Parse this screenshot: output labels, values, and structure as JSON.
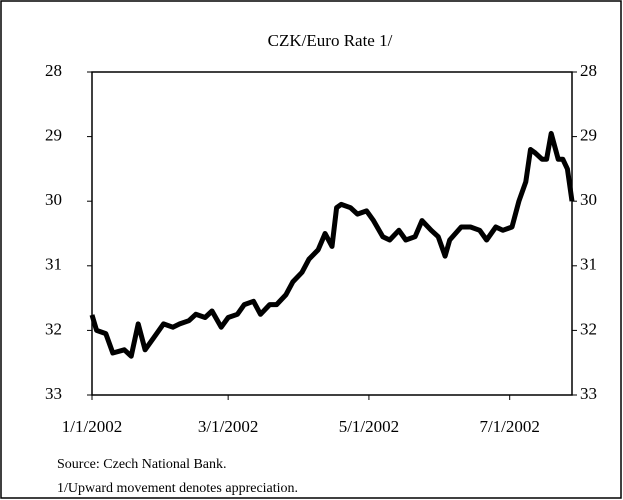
{
  "chart_data": {
    "type": "line",
    "title": "CZK/Euro Rate 1/",
    "source": "Source: Czech National Bank.",
    "note": "1/Upward movement denotes appreciation.",
    "xlim": [
      "2002-01-01",
      "2002-07-28"
    ],
    "xticks": [
      {
        "value": "2002-01-01",
        "label": "1/1/2002"
      },
      {
        "value": "2002-03-01",
        "label": "3/1/2002"
      },
      {
        "value": "2002-05-01",
        "label": "5/1/2002"
      },
      {
        "value": "2002-07-01",
        "label": "7/1/2002"
      }
    ],
    "ylim": [
      33,
      28
    ],
    "yticks": [
      28,
      29,
      30,
      31,
      32,
      33
    ],
    "y2lim": [
      33,
      28
    ],
    "y2ticks": [
      28,
      29,
      30,
      31,
      32,
      33
    ],
    "x": [
      "2002-01-01",
      "2002-01-03",
      "2002-01-07",
      "2002-01-10",
      "2002-01-15",
      "2002-01-18",
      "2002-01-21",
      "2002-01-24",
      "2002-01-28",
      "2002-02-01",
      "2002-02-05",
      "2002-02-08",
      "2002-02-12",
      "2002-02-15",
      "2002-02-19",
      "2002-02-22",
      "2002-02-26",
      "2002-03-01",
      "2002-03-05",
      "2002-03-08",
      "2002-03-12",
      "2002-03-15",
      "2002-03-19",
      "2002-03-22",
      "2002-03-26",
      "2002-03-29",
      "2002-04-02",
      "2002-04-05",
      "2002-04-09",
      "2002-04-12",
      "2002-04-15",
      "2002-04-17",
      "2002-04-19",
      "2002-04-23",
      "2002-04-26",
      "2002-04-30",
      "2002-05-03",
      "2002-05-07",
      "2002-05-10",
      "2002-05-14",
      "2002-05-17",
      "2002-05-21",
      "2002-05-24",
      "2002-05-28",
      "2002-05-31",
      "2002-06-03",
      "2002-06-05",
      "2002-06-10",
      "2002-06-14",
      "2002-06-18",
      "2002-06-21",
      "2002-06-25",
      "2002-06-28",
      "2002-07-02",
      "2002-07-05",
      "2002-07-08",
      "2002-07-10",
      "2002-07-12",
      "2002-07-15",
      "2002-07-17",
      "2002-07-19",
      "2002-07-22",
      "2002-07-24",
      "2002-07-26",
      "2002-07-28"
    ],
    "series": [
      {
        "name": "CZK/Euro",
        "color": "#000000",
        "values": [
          31.76,
          32.0,
          32.05,
          32.35,
          32.3,
          32.4,
          31.9,
          32.3,
          32.1,
          31.9,
          31.95,
          31.9,
          31.85,
          31.75,
          31.8,
          31.7,
          31.95,
          31.8,
          31.75,
          31.6,
          31.55,
          31.75,
          31.6,
          31.6,
          31.45,
          31.25,
          31.1,
          30.9,
          30.75,
          30.5,
          30.7,
          30.1,
          30.05,
          30.1,
          30.2,
          30.15,
          30.3,
          30.55,
          30.6,
          30.45,
          30.6,
          30.55,
          30.3,
          30.45,
          30.55,
          30.85,
          30.6,
          30.4,
          30.4,
          30.45,
          30.6,
          30.4,
          30.45,
          30.4,
          30.0,
          29.7,
          29.2,
          29.25,
          29.35,
          29.35,
          28.95,
          29.35,
          29.35,
          29.5,
          30.0
        ]
      }
    ]
  }
}
